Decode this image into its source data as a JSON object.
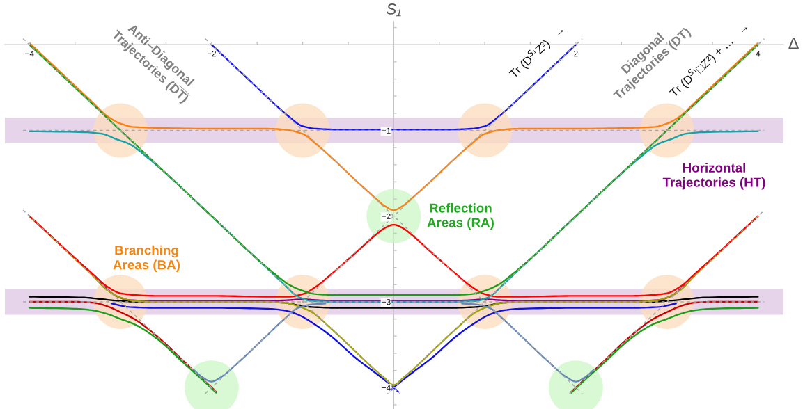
{
  "chart_data": {
    "type": "line",
    "xlabel": "Δ",
    "ylabel": "S₁",
    "xlim": [
      -4.27,
      4.28
    ],
    "ylim": [
      -4.25,
      0.27
    ],
    "xticks": [
      {
        "value": -4,
        "label": "−4"
      },
      {
        "value": -3.5,
        "label": null
      },
      {
        "value": -3,
        "label": null
      },
      {
        "value": -2.5,
        "label": null
      },
      {
        "value": -2,
        "label": "−2"
      },
      {
        "value": -1.5,
        "label": null
      },
      {
        "value": -1,
        "label": null
      },
      {
        "value": -0.5,
        "label": null
      },
      {
        "value": 0.5,
        "label": null
      },
      {
        "value": 1,
        "label": null
      },
      {
        "value": 1.5,
        "label": null
      },
      2,
      {
        "value": 2.5,
        "label": null
      },
      {
        "value": 3,
        "label": null
      },
      {
        "value": 3.5,
        "label": null
      },
      4
    ],
    "yticks": [
      {
        "value": 0.2,
        "label": null
      },
      {
        "value": -0.2,
        "label": null
      },
      {
        "value": -0.4,
        "label": null
      },
      {
        "value": -0.6,
        "label": null
      },
      {
        "value": -0.8,
        "label": null
      },
      {
        "value": -1,
        "label": "−1"
      },
      {
        "value": -1.2,
        "label": null
      },
      {
        "value": -1.4,
        "label": null
      },
      {
        "value": -1.6,
        "label": null
      },
      {
        "value": -1.8,
        "label": null
      },
      {
        "value": -2,
        "label": "−2"
      },
      {
        "value": -2.2,
        "label": null
      },
      {
        "value": -2.4,
        "label": null
      },
      {
        "value": -2.6,
        "label": null
      },
      {
        "value": -2.8,
        "label": null
      },
      {
        "value": -3,
        "label": "−3"
      },
      {
        "value": -3.2,
        "label": null
      },
      {
        "value": -3.4,
        "label": null
      },
      {
        "value": -3.6,
        "label": null
      },
      {
        "value": -3.8,
        "label": null
      },
      {
        "value": -4,
        "label": "−4"
      },
      {
        "value": -4.2,
        "label": null
      }
    ],
    "bands": [
      {
        "axis": "y",
        "from": -1.15,
        "to": -0.85,
        "color": "#e6d4ea"
      },
      {
        "axis": "y",
        "from": -3.15,
        "to": -2.85,
        "color": "#e6d4ea"
      }
    ],
    "series": [
      {
        "type": "scatter",
        "marker": "circle",
        "color": "#fcdcbc",
        "x": [
          -3,
          -1,
          1,
          3,
          -3,
          -1,
          1,
          3
        ],
        "values": [
          -1,
          -1,
          -1,
          -1,
          -3,
          -3,
          -3,
          -3
        ]
      },
      {
        "type": "scatter",
        "marker": "circle",
        "color": "#ccf5c6",
        "x": [
          0,
          -2,
          2
        ],
        "values": [
          -2,
          -4,
          -4
        ]
      },
      {
        "color": "#800080",
        "x": [
          -3.3,
          -3.15,
          -3.05,
          -2.9,
          -2.6,
          -1.4,
          -1.15,
          -1.0,
          -0.85,
          -0.6,
          0,
          0.6,
          0.85,
          1.0,
          1.15,
          1.4,
          2.6,
          2.9,
          3.05,
          3.15,
          3.3
        ],
        "values": [
          -2.7,
          -2.85,
          -2.93,
          -2.98,
          -2.99,
          -2.99,
          -2.98,
          -2.97,
          -2.98,
          -2.99,
          -2.99,
          -2.99,
          -2.98,
          -2.97,
          -2.98,
          -2.99,
          -2.99,
          -2.98,
          -2.93,
          -2.85,
          -2.7
        ]
      },
      {
        "color": "#000000",
        "x": [
          -4,
          -3.4,
          -3.2,
          -3.0,
          -2.8,
          -2.4,
          -1.5,
          -1.2,
          -1.05,
          -0.9,
          -0.6,
          0,
          0.6,
          0.9,
          1.05,
          1.2,
          1.5,
          2.4,
          2.8,
          3.0,
          3.2,
          3.4,
          4
        ],
        "values": [
          -2.94,
          -2.95,
          -2.97,
          -2.99,
          -3.0,
          -3.0,
          -3.0,
          -3.01,
          -3.04,
          -3.06,
          -3.07,
          -3.07,
          -3.07,
          -3.06,
          -3.04,
          -3.01,
          -3.0,
          -3.0,
          -3.0,
          -2.99,
          -2.97,
          -2.95,
          -2.94
        ]
      },
      {
        "color": "#cc0000",
        "x": [
          -4,
          -3.5,
          -3.3,
          -3.15,
          -3.0,
          -2.85,
          -2.6,
          -2.3,
          -2.1,
          -1.95,
          0,
          1.95,
          2.1,
          2.3,
          2.6,
          2.85,
          3.0,
          3.15,
          3.3,
          3.5,
          4
        ],
        "values": [
          -3.0,
          -3.0,
          -3.01,
          -3.05,
          -3.12,
          -3.2,
          -3.4,
          -3.7,
          -3.9,
          -4.05,
          null,
          -4.05,
          -3.9,
          -3.7,
          -3.4,
          -3.2,
          -3.12,
          -3.05,
          -3.01,
          -3.0,
          -3.0
        ]
      },
      {
        "color": "#1a9e1a",
        "x": [
          -4,
          -3.5,
          -3.3,
          -3.15,
          -3.0,
          -2.85,
          -2.6,
          -2.3,
          -2.1,
          -1.95,
          0,
          1.95,
          2.1,
          2.3,
          2.6,
          2.85,
          3.0,
          3.15,
          3.3,
          3.5,
          4
        ],
        "values": [
          -3.07,
          -3.08,
          -3.1,
          -3.14,
          -3.2,
          -3.26,
          -3.43,
          -3.72,
          -3.91,
          -4.06,
          null,
          -4.06,
          -3.91,
          -3.72,
          -3.43,
          -3.26,
          -3.2,
          -3.14,
          -3.1,
          -3.08,
          -3.07
        ]
      },
      {
        "color": "#1010e0",
        "x": [
          -3.1,
          -2.9,
          -2.6,
          -2,
          -1.4,
          -1.2,
          -1.05,
          -0.9,
          -0.7,
          -0.4,
          -0.2,
          0,
          0.05
        ],
        "values": [
          -3.02,
          -3.06,
          -3.07,
          -3.07,
          -3.08,
          -3.1,
          -3.15,
          -3.24,
          -3.39,
          -3.67,
          -3.83,
          -4.0,
          -4.05
        ]
      },
      {
        "color": "#1010e0",
        "x": [
          -0.05,
          0,
          0.2,
          0.4,
          0.7,
          0.9,
          1.05,
          1.2,
          1.4,
          2,
          2.6,
          2.9,
          3.1
        ],
        "values": [
          -4.05,
          -4.0,
          -3.83,
          -3.67,
          -3.39,
          -3.24,
          -3.15,
          -3.1,
          -3.08,
          -3.07,
          -3.07,
          -3.06,
          -3.02
        ]
      },
      {
        "color": "#a0a000",
        "x": [
          -4,
          -3.5,
          -3.3,
          -3.15,
          -3.0,
          -2.85,
          -2.6,
          -2,
          -1.4,
          -1.2,
          -1.05,
          -0.9,
          -0.7,
          -0.4,
          -0.2,
          -0.1,
          0,
          0.1,
          0.2,
          0.4,
          0.7,
          0.9,
          1.05,
          1.2,
          1.4,
          2,
          2.6,
          2.85,
          3.0,
          3.15,
          3.3,
          3.5,
          4
        ],
        "values": [
          -2.0,
          -2.5,
          -2.7,
          -2.86,
          -2.95,
          -2.99,
          -3.0,
          -3.0,
          -3.0,
          -3.01,
          -3.05,
          -3.12,
          -3.3,
          -3.6,
          -3.8,
          -3.89,
          -3.97,
          -3.89,
          -3.8,
          -3.6,
          -3.3,
          -3.12,
          -3.05,
          -3.01,
          -3.0,
          -3.0,
          -3.0,
          -2.99,
          -2.95,
          -2.86,
          -2.7,
          -2.5,
          -2.0
        ]
      },
      {
        "color": "#ff0000",
        "x": [
          -4,
          -3.5,
          -3.3,
          -3.15,
          -3.0,
          -2.85,
          -2.6,
          -2,
          -1.4,
          -1.15,
          -1.0,
          -0.85,
          -0.7,
          -0.4,
          -0.2,
          -0.1,
          0,
          0.1,
          0.2,
          0.4,
          0.7,
          0.85,
          1.0,
          1.15,
          1.4,
          2,
          2.6,
          2.85,
          3.0,
          3.15,
          3.3,
          3.5,
          4
        ],
        "values": [
          -2.0,
          -2.49,
          -2.68,
          -2.82,
          -2.9,
          -2.92,
          -2.93,
          -2.93,
          -2.94,
          -2.94,
          -2.91,
          -2.82,
          -2.69,
          -2.41,
          -2.22,
          -2.14,
          -2.1,
          -2.14,
          -2.22,
          -2.41,
          -2.69,
          -2.82,
          -2.91,
          -2.94,
          -2.94,
          -2.93,
          -2.93,
          -2.92,
          -2.9,
          -2.82,
          -2.68,
          -2.49,
          -2.0
        ]
      },
      {
        "color": "#6286bb",
        "x": [
          -2.2,
          -2.1,
          -2.0,
          -1.9,
          -1.7,
          -1.4,
          -1.2,
          -1.05,
          -0.9,
          -0.75,
          0,
          0.75,
          0.9,
          1.05,
          1.2,
          1.4,
          1.7,
          1.9,
          2.0,
          2.1,
          2.2
        ],
        "values": [
          -3.79,
          -3.88,
          -3.93,
          -3.88,
          -3.7,
          -3.4,
          -3.2,
          -3.07,
          -3.03,
          -3.02,
          null,
          -3.02,
          -3.03,
          -3.07,
          -3.2,
          -3.4,
          -3.7,
          -3.88,
          -3.93,
          -3.88,
          -3.79
        ]
      },
      {
        "color": "#13a3a8",
        "x": [
          -4,
          -3.4,
          -3.2,
          -3.05,
          -2.9,
          -2.7,
          -2.4,
          -2,
          -1.4,
          -1.2,
          -1.05,
          -0.9,
          -0.6,
          0,
          0.6,
          0.9,
          1.05,
          1.2,
          1.4,
          2,
          2.4,
          2.7,
          2.9,
          3.05,
          3.2,
          3.4,
          4
        ],
        "values": [
          -1.01,
          -1.02,
          -1.04,
          -1.1,
          -1.16,
          -1.32,
          -1.6,
          -2.0,
          -2.6,
          -2.8,
          -2.94,
          -2.99,
          -3.0,
          -3.0,
          -3.0,
          -2.99,
          -2.94,
          -2.8,
          -2.6,
          -2.0,
          -1.6,
          -1.32,
          -1.16,
          -1.1,
          -1.04,
          -1.02,
          -1.01
        ]
      },
      {
        "color": "#ff7f0e",
        "x": [
          -4,
          -3.6,
          -3.3,
          -3.15,
          -3.0,
          -2.85,
          -2.6,
          -2,
          -1.4,
          -1.2,
          -1.0,
          -0.85,
          -0.7,
          -0.4,
          -0.2,
          -0.1,
          0,
          0.1,
          0.2,
          0.4,
          0.7,
          0.85,
          1.0,
          1.2,
          1.4,
          2,
          2.6,
          2.85,
          3.0,
          3.15,
          3.3,
          3.6,
          4
        ],
        "values": [
          0.02,
          -0.38,
          -0.68,
          -0.83,
          -0.92,
          -0.96,
          -0.97,
          -0.98,
          -0.98,
          -0.99,
          -1.04,
          -1.16,
          -1.3,
          -1.6,
          -1.79,
          -1.88,
          -1.93,
          -1.88,
          -1.79,
          -1.6,
          -1.3,
          -1.16,
          -1.04,
          -0.99,
          -0.98,
          -0.98,
          -0.97,
          -0.96,
          -0.92,
          -0.83,
          -0.68,
          -0.38,
          0.02
        ]
      },
      {
        "color": "#1a9e1a",
        "x": [
          -4,
          -3.4,
          -3.0,
          -2.4,
          -2,
          -1.5,
          -1.3,
          -1.15,
          -1.0,
          -0.85,
          -0.6,
          0,
          0.6,
          0.85,
          1.0,
          1.15,
          1.3,
          1.5,
          2,
          2.4,
          3.0,
          3.4,
          4
        ],
        "values": [
          0,
          -0.6,
          -1.0,
          -1.6,
          -2.0,
          -2.5,
          -2.68,
          -2.8,
          -2.87,
          -2.91,
          -2.92,
          -2.92,
          -2.92,
          -2.91,
          -2.87,
          -2.8,
          -2.68,
          -2.5,
          -2.0,
          -1.6,
          -1.0,
          -0.6,
          0
        ]
      },
      {
        "color": "#1010f0",
        "x": [
          -2,
          -1.6,
          -1.3,
          -1.15,
          -1.0,
          -0.85,
          -0.6,
          0,
          0.6,
          0.85,
          1.0,
          1.15,
          1.3,
          1.6,
          2
        ],
        "values": [
          0,
          -0.4,
          -0.7,
          -0.84,
          -0.95,
          -0.98,
          -0.99,
          -0.99,
          -0.99,
          -0.98,
          -0.95,
          -0.84,
          -0.7,
          -0.4,
          0
        ]
      },
      {
        "line_style": "dashed",
        "color": "#a8a8a8",
        "x": [
          -4.07,
          4.07
        ],
        "values": [
          -1,
          -1
        ]
      },
      {
        "line_style": "dashed",
        "color": "#a8a8a8",
        "x": [
          -4.07,
          4.07
        ],
        "values": [
          -3,
          -3
        ]
      },
      {
        "line_style": "dashed",
        "color": "#a8a8a8",
        "x": [
          -4.07,
          0.07
        ],
        "values": [
          0.07,
          -4.07
        ]
      },
      {
        "line_style": "dashed",
        "color": "#a8a8a8",
        "x": [
          -2.07,
          2.07
        ],
        "values": [
          0.07,
          -4.07
        ]
      },
      {
        "line_style": "dashed",
        "color": "#a8a8a8",
        "x": [
          -2.07,
          2.07
        ],
        "values": [
          -4.07,
          0.07
        ]
      },
      {
        "line_style": "dashed",
        "color": "#a8a8a8",
        "x": [
          -0.07,
          4.07
        ],
        "values": [
          -4.07,
          0.07
        ]
      },
      {
        "line_style": "dashed",
        "color": "#a8a8a8",
        "x": [
          -4.07,
          -1.93
        ],
        "values": [
          -1.93,
          -4.07
        ]
      },
      {
        "line_style": "dashed",
        "color": "#a8a8a8",
        "x": [
          1.93,
          4.07
        ],
        "values": [
          -4.07,
          -1.93
        ]
      }
    ],
    "annotations": [
      "Anti–Diagonal\nTrajectories (D̅T̅)",
      "Diagonal\nTrajectories (DT)",
      "Tr (D$^{S₁}$Z²)   →",
      "Tr (D$^{S₁}$□Z²) + …   →",
      "Branching\nAreas (BA)",
      "Reflection\nAreas (RA)",
      "Horizontal\nTrajectories (HT)"
    ]
  }
}
